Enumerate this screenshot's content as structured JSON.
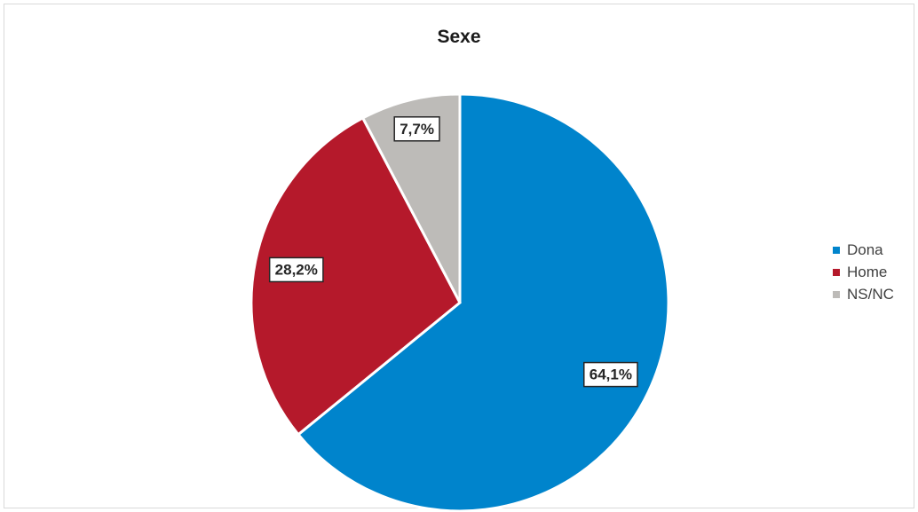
{
  "chart_data": {
    "type": "pie",
    "title": "Sexe",
    "categories": [
      "Dona",
      "Home",
      "NS/NC"
    ],
    "values": [
      64.1,
      28.2,
      7.7
    ],
    "labels": [
      "64,1%",
      "28,2%",
      "7,7%"
    ],
    "colors": [
      "#0084cc",
      "#b5192b",
      "#bdbbb8"
    ],
    "legend_position": "right",
    "start_angle_deg": 0,
    "direction": "clockwise"
  }
}
